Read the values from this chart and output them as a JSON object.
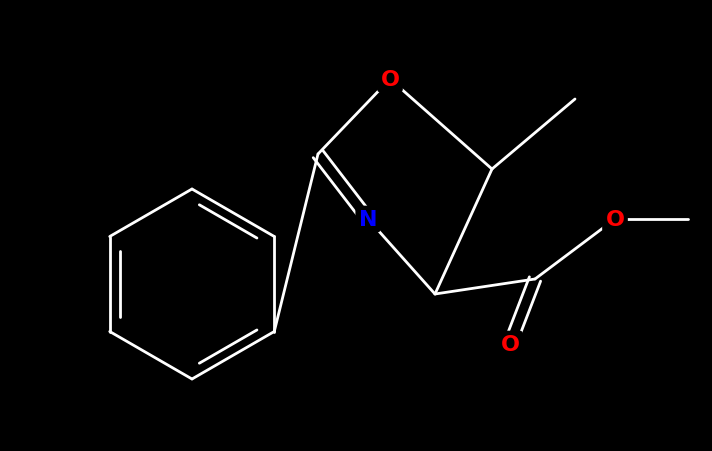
{
  "background_color": "#000000",
  "bond_color": "#ffffff",
  "atom_colors": {
    "O": "#ff0000",
    "N": "#0000ff"
  },
  "figsize": [
    7.12,
    4.52
  ],
  "dpi": 100,
  "lw": 2.0,
  "lw_thin": 1.6,
  "fontsize": 16
}
